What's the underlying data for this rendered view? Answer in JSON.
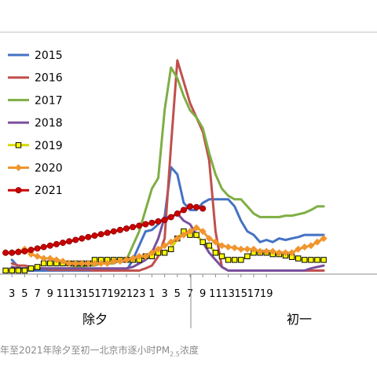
{
  "caption": {
    "main": "年至2021年除夕至初一北京市逐小时PM",
    "sub": "2.5",
    "tail": "浓度"
  },
  "chart_data": {
    "type": "line",
    "title": "",
    "xlabel": "",
    "ylabel": "",
    "x_tick_labels": [
      "3",
      "5",
      "7",
      "9",
      "11",
      "13",
      "15",
      "17",
      "19",
      "21",
      "23",
      "1",
      "3",
      "5",
      "7",
      "9",
      "11",
      "13",
      "15",
      "17",
      "19"
    ],
    "x_groups": [
      "除夕",
      "初一"
    ],
    "ylim": [
      0,
      300
    ],
    "grid": "top line only",
    "legend_position": "top-left",
    "series": [
      {
        "name": "2015",
        "color": "#4472c4",
        "marker": "none",
        "x": [
          2,
          3,
          4,
          5,
          6,
          7,
          8,
          9,
          10,
          11,
          12,
          13,
          14,
          15,
          16,
          17,
          18,
          19,
          20,
          21,
          22,
          23,
          24,
          25,
          26,
          27,
          28,
          29,
          30,
          31,
          32,
          33,
          34,
          35,
          36,
          37,
          38,
          39,
          40,
          41,
          42,
          43,
          44,
          45,
          46,
          47,
          48,
          49,
          50,
          51
        ],
        "values": [
          20,
          10,
          5,
          5,
          5,
          5,
          5,
          5,
          5,
          5,
          5,
          5,
          5,
          5,
          5,
          5,
          5,
          5,
          5,
          20,
          40,
          60,
          62,
          70,
          80,
          150,
          140,
          100,
          90,
          90,
          100,
          105,
          105,
          105,
          105,
          95,
          75,
          60,
          55,
          45,
          48,
          45,
          50,
          48,
          50,
          52,
          55,
          55,
          55,
          55
        ]
      },
      {
        "name": "2016",
        "color": "#c0504d",
        "marker": "none",
        "x": [
          2,
          3,
          4,
          5,
          6,
          7,
          8,
          9,
          10,
          11,
          12,
          13,
          14,
          15,
          16,
          17,
          18,
          19,
          20,
          21,
          22,
          23,
          24,
          25,
          26,
          27,
          28,
          29,
          30,
          31,
          32,
          33,
          34,
          35,
          36,
          37,
          38,
          39,
          40,
          41,
          42,
          43,
          44,
          45,
          46,
          47,
          48,
          49,
          50,
          51
        ],
        "values": [
          15,
          12,
          12,
          10,
          8,
          8,
          6,
          6,
          6,
          6,
          6,
          6,
          6,
          5,
          5,
          5,
          5,
          5,
          5,
          5,
          5,
          8,
          12,
          25,
          50,
          180,
          300,
          270,
          240,
          220,
          200,
          160,
          60,
          10,
          5,
          5,
          5,
          5,
          5,
          5,
          5,
          5,
          5,
          5,
          5,
          5,
          5,
          5,
          5,
          5
        ]
      },
      {
        "name": "2017",
        "color": "#7fae44",
        "marker": "none",
        "x": [
          2,
          3,
          4,
          5,
          6,
          7,
          8,
          9,
          10,
          11,
          12,
          13,
          14,
          15,
          16,
          17,
          18,
          19,
          20,
          21,
          22,
          23,
          24,
          25,
          26,
          27,
          28,
          29,
          30,
          31,
          32,
          33,
          34,
          35,
          36,
          37,
          38,
          39,
          40,
          41,
          42,
          43,
          44,
          45,
          46,
          47,
          48,
          49,
          50,
          51
        ],
        "values": [
          10,
          8,
          8,
          8,
          8,
          8,
          8,
          8,
          8,
          8,
          10,
          10,
          12,
          12,
          15,
          15,
          15,
          20,
          20,
          40,
          60,
          90,
          120,
          135,
          230,
          290,
          275,
          250,
          230,
          220,
          205,
          170,
          140,
          120,
          110,
          105,
          105,
          95,
          85,
          80,
          80,
          80,
          80,
          82,
          82,
          84,
          86,
          90,
          95,
          95
        ]
      },
      {
        "name": "2018",
        "color": "#7a4f9d",
        "marker": "none",
        "x": [
          2,
          3,
          4,
          5,
          6,
          7,
          8,
          9,
          10,
          11,
          12,
          13,
          14,
          15,
          16,
          17,
          18,
          19,
          20,
          21,
          22,
          23,
          24,
          25,
          26,
          27,
          28,
          29,
          30,
          31,
          32,
          33,
          34,
          35,
          36,
          37,
          38,
          39,
          40,
          41,
          42,
          43,
          44,
          45,
          46,
          47,
          48,
          49,
          50,
          51
        ],
        "values": [
          10,
          8,
          8,
          8,
          8,
          8,
          8,
          8,
          8,
          8,
          8,
          8,
          8,
          8,
          8,
          8,
          8,
          8,
          8,
          10,
          15,
          20,
          30,
          50,
          80,
          80,
          85,
          75,
          70,
          55,
          45,
          30,
          20,
          10,
          5,
          5,
          5,
          5,
          5,
          5,
          5,
          5,
          5,
          5,
          5,
          5,
          5,
          8,
          10,
          12
        ]
      },
      {
        "name": "2019",
        "color": "#d8d800",
        "marker": "square",
        "x": [
          1,
          2,
          3,
          4,
          5,
          6,
          7,
          8,
          9,
          10,
          11,
          12,
          13,
          14,
          15,
          16,
          17,
          18,
          19,
          20,
          21,
          22,
          23,
          24,
          25,
          26,
          27,
          28,
          29,
          30,
          31,
          32,
          33,
          34,
          35,
          36,
          37,
          38,
          39,
          40,
          41,
          42,
          43,
          44,
          45,
          46,
          47,
          48,
          49,
          50,
          51
        ],
        "values": [
          5,
          5,
          5,
          5,
          8,
          10,
          15,
          15,
          15,
          15,
          15,
          15,
          15,
          15,
          20,
          20,
          20,
          20,
          20,
          20,
          20,
          20,
          25,
          25,
          30,
          30,
          35,
          50,
          60,
          55,
          55,
          45,
          40,
          30,
          25,
          20,
          20,
          20,
          25,
          30,
          30,
          30,
          28,
          28,
          26,
          24,
          22,
          20,
          20,
          20,
          20
        ]
      },
      {
        "name": "2020",
        "color": "#f0962e",
        "marker": "diamond",
        "x": [
          1,
          2,
          3,
          4,
          5,
          6,
          7,
          8,
          9,
          10,
          11,
          12,
          13,
          14,
          15,
          16,
          17,
          18,
          19,
          20,
          21,
          22,
          23,
          24,
          25,
          26,
          27,
          28,
          29,
          30,
          31,
          32,
          33,
          34,
          35,
          36,
          37,
          38,
          39,
          40,
          41,
          42,
          43,
          44,
          45,
          46,
          47,
          48,
          49,
          50,
          51
        ],
        "values": [
          30,
          30,
          32,
          35,
          28,
          25,
          22,
          22,
          20,
          18,
          15,
          15,
          15,
          15,
          15,
          15,
          15,
          18,
          18,
          20,
          22,
          25,
          25,
          30,
          35,
          40,
          45,
          50,
          55,
          60,
          65,
          60,
          50,
          45,
          40,
          38,
          37,
          35,
          35,
          35,
          32,
          32,
          32,
          30,
          30,
          30,
          35,
          38,
          40,
          45,
          50
        ]
      },
      {
        "name": "2021",
        "color": "#cc0000",
        "marker": "circle",
        "x": [
          1,
          2,
          3,
          4,
          5,
          6,
          7,
          8,
          9,
          10,
          11,
          12,
          13,
          14,
          15,
          16,
          17,
          18,
          19,
          20,
          21,
          22,
          23,
          24,
          25,
          26,
          27,
          28,
          29,
          30,
          31,
          32
        ],
        "values": [
          30,
          30,
          31,
          32,
          34,
          36,
          38,
          40,
          42,
          44,
          46,
          48,
          50,
          52,
          54,
          56,
          58,
          60,
          62,
          64,
          66,
          68,
          70,
          72,
          74,
          76,
          80,
          85,
          90,
          95,
          94,
          92
        ]
      }
    ]
  }
}
